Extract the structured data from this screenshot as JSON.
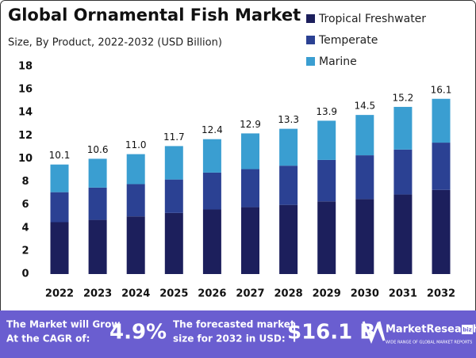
{
  "chart_data": {
    "type": "bar",
    "stacked": true,
    "title": "Global Ornamental Fish Market",
    "subtitle": "Size, By Product, 2022-2032 (USD Billion)",
    "categories": [
      "2022",
      "2023",
      "2024",
      "2025",
      "2026",
      "2027",
      "2028",
      "2029",
      "2030",
      "2031",
      "2032"
    ],
    "series": [
      {
        "name": "Tropical Freshwater",
        "color": "#1c1f5c",
        "values": [
          4.5,
          4.7,
          5.0,
          5.3,
          5.6,
          5.8,
          6.0,
          6.3,
          6.5,
          6.9,
          7.3
        ]
      },
      {
        "name": "Temperate",
        "color": "#2b4193",
        "values": [
          2.6,
          2.8,
          2.8,
          2.9,
          3.2,
          3.3,
          3.4,
          3.6,
          3.8,
          3.9,
          4.1
        ]
      },
      {
        "name": "Marine",
        "color": "#3a9ed1",
        "values": [
          2.4,
          2.5,
          2.6,
          2.9,
          2.9,
          3.1,
          3.2,
          3.4,
          3.5,
          3.7,
          3.8
        ]
      }
    ],
    "totals": [
      {
        "value": 10.1,
        "label": "10.1"
      },
      {
        "value": 10.6,
        "label": "10.6"
      },
      {
        "value": 11.0,
        "label": "11.0"
      },
      {
        "value": 11.7,
        "label": "11.7"
      },
      {
        "value": 12.4,
        "label": "12.4"
      },
      {
        "value": 12.9,
        "label": "12.9"
      },
      {
        "value": 13.3,
        "label": "13.3"
      },
      {
        "value": 13.9,
        "label": "13.9"
      },
      {
        "value": 14.5,
        "label": "14.5"
      },
      {
        "value": 15.2,
        "label": "15.2"
      },
      {
        "value": 16.1,
        "label": "16.1"
      }
    ],
    "ylim": [
      0,
      18
    ],
    "yticks": [
      0,
      2,
      4,
      6,
      8,
      10,
      12,
      14,
      16,
      18
    ],
    "grid": false,
    "legend": "top-right"
  },
  "footer": {
    "cagr_text": [
      "The Market will Grow",
      "At the CAGR of:"
    ],
    "cagr": "4.9%",
    "forecast_text": [
      "The forecasted market",
      "size for 2032 in USD:"
    ],
    "forecast": "$16.1 B",
    "logo": "MarketResearch",
    "logo_badge": "biz",
    "logo_tagline": "WIDE RANGE OF GLOBAL MARKET REPORTS"
  }
}
